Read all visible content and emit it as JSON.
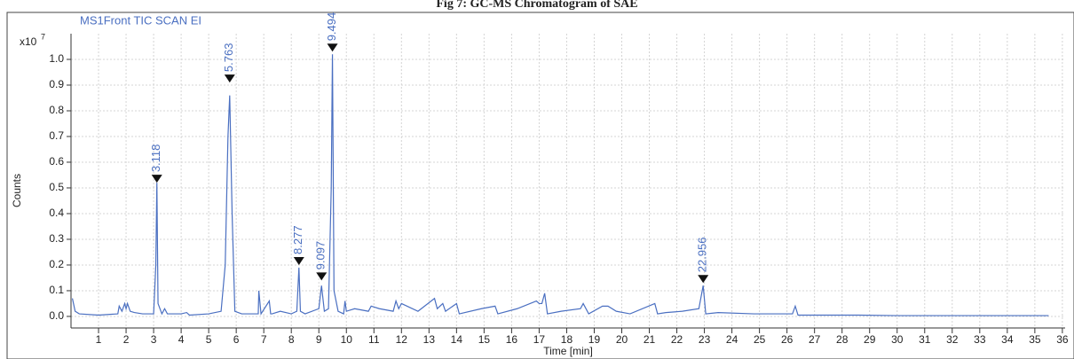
{
  "chart_data": {
    "type": "line",
    "title": "Fig 7: GC-MS Chromatogram of SAE",
    "subtitle": "MS1Front TIC SCAN EI",
    "x_label": "Time [min]",
    "y_label": "Counts",
    "y_scale_base": "x10",
    "y_scale_exponent": "7",
    "color": "#4a6fc1",
    "grid": true,
    "xlim": [
      0,
      36.1
    ],
    "ylim": [
      -0.045,
      1.1
    ],
    "xticks": [
      1,
      2,
      3,
      4,
      5,
      6,
      7,
      8,
      9,
      10,
      11,
      12,
      13,
      14,
      15,
      16,
      17,
      18,
      19,
      20,
      21,
      22,
      23,
      24,
      25,
      26,
      27,
      28,
      29,
      30,
      31,
      32,
      33,
      34,
      35,
      36
    ],
    "yticks": [
      {
        "value": 0,
        "label": "0.0"
      },
      0.1,
      0.2,
      0.3,
      0.4,
      0.5,
      0.6,
      0.7,
      0.8,
      0.9,
      {
        "value": 1,
        "label": "1.0"
      }
    ],
    "x": [
      0.05,
      0.15,
      0.3,
      1.0,
      1.7,
      1.75,
      1.85,
      1.95,
      2.0,
      2.05,
      2.15,
      2.3,
      2.6,
      3.0,
      3.08,
      3.118,
      3.16,
      3.3,
      3.4,
      3.5,
      4.0,
      4.2,
      4.3,
      5.0,
      5.45,
      5.6,
      5.7,
      5.763,
      5.85,
      5.95,
      6.2,
      6.8,
      6.82,
      6.9,
      7.2,
      7.25,
      7.3,
      7.6,
      8.0,
      8.2,
      8.277,
      8.33,
      8.5,
      9.0,
      9.097,
      9.2,
      9.35,
      9.45,
      9.494,
      9.55,
      9.7,
      9.9,
      9.95,
      10.0,
      10.3,
      10.8,
      10.9,
      11.2,
      11.7,
      11.8,
      11.9,
      12.0,
      12.6,
      13.2,
      13.3,
      13.5,
      13.6,
      14.0,
      14.1,
      14.9,
      15.4,
      15.5,
      16.2,
      16.9,
      17.0,
      17.1,
      17.2,
      17.3,
      17.8,
      18.5,
      18.6,
      18.8,
      19.3,
      19.5,
      19.8,
      20.3,
      21.2,
      21.3,
      21.6,
      22.2,
      22.8,
      22.956,
      23.05,
      23.5,
      24.8,
      26.2,
      26.3,
      26.4,
      28.6,
      30,
      35.5
    ],
    "values": [
      0.07,
      0.02,
      0.01,
      0.005,
      0.01,
      0.04,
      0.02,
      0.05,
      0.03,
      0.05,
      0.02,
      0.015,
      0.01,
      0.01,
      0.2,
      0.52,
      0.05,
      0.01,
      0.03,
      0.01,
      0.01,
      0.015,
      0.005,
      0.01,
      0.02,
      0.2,
      0.7,
      0.86,
      0.4,
      0.02,
      0.01,
      0.01,
      0.1,
      0.01,
      0.06,
      0.01,
      0.01,
      0.02,
      0.01,
      0.02,
      0.19,
      0.02,
      0.01,
      0.03,
      0.12,
      0.02,
      0.03,
      0.5,
      1.02,
      0.1,
      0.02,
      0.01,
      0.06,
      0.02,
      0.03,
      0.02,
      0.04,
      0.03,
      0.02,
      0.06,
      0.03,
      0.05,
      0.02,
      0.07,
      0.03,
      0.05,
      0.02,
      0.05,
      0.01,
      0.03,
      0.04,
      0.01,
      0.03,
      0.06,
      0.05,
      0.05,
      0.09,
      0.01,
      0.02,
      0.03,
      0.05,
      0.01,
      0.04,
      0.04,
      0.02,
      0.01,
      0.05,
      0.01,
      0.015,
      0.02,
      0.03,
      0.12,
      0.01,
      0.015,
      0.01,
      0.01,
      0.04,
      0.005,
      0.005,
      0.003,
      0.003
    ],
    "annotations": [
      {
        "text": "3.118",
        "x": 3.118,
        "y": 0.52
      },
      {
        "text": "5.763",
        "x": 5.763,
        "y": 0.91
      },
      {
        "text": "8.277",
        "x": 8.277,
        "y": 0.2
      },
      {
        "text": "9.097",
        "x": 9.097,
        "y": 0.14
      },
      {
        "text": "9.494",
        "x": 9.494,
        "y": 1.03
      },
      {
        "text": "22.956",
        "x": 22.956,
        "y": 0.13
      }
    ]
  }
}
